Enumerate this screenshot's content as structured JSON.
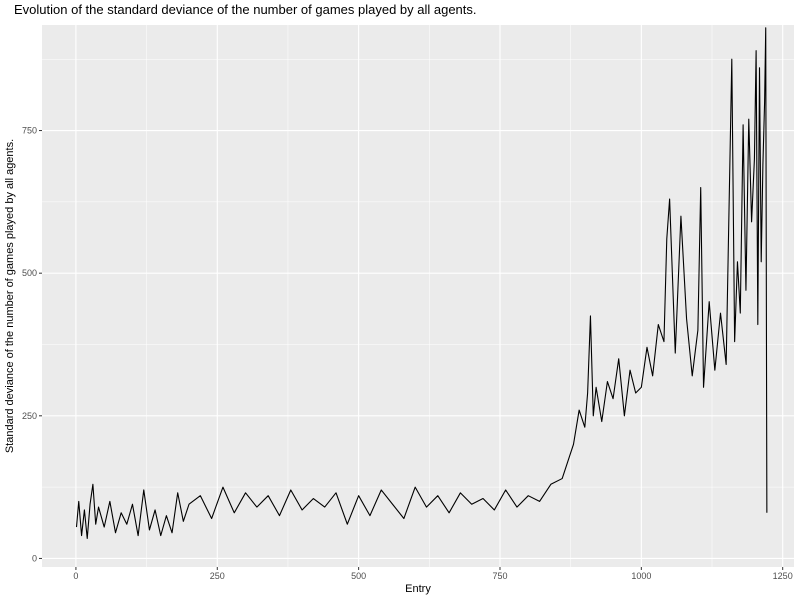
{
  "chart_data": {
    "type": "line",
    "title": "Evolution of the standard deviance of the number of games played by all agents.",
    "xlabel": "Entry",
    "ylabel": "Standard deviance of the number of games played by all agents.",
    "xlim": [
      -60,
      1270
    ],
    "ylim": [
      -15,
      935
    ],
    "x_ticks": [
      0,
      250,
      500,
      750,
      1000,
      1250
    ],
    "x_tick_labels": [
      "0",
      "250",
      "500",
      "750",
      "1000",
      "1250"
    ],
    "y_ticks": [
      0,
      250,
      500,
      750
    ],
    "y_tick_labels": [
      "0",
      "250",
      "500",
      "750"
    ],
    "grid": true,
    "legend": "none",
    "colors": {
      "panel": "#ebebeb",
      "grid": "#ffffff",
      "line": "#000000",
      "tick_text": "#4d4d4d",
      "tick_mark": "#333333"
    },
    "series": [
      {
        "x": [
          1,
          5,
          10,
          15,
          20,
          25,
          30,
          35,
          40,
          50,
          60,
          70,
          80,
          90,
          100,
          110,
          120,
          130,
          140,
          150,
          160,
          170,
          180,
          190,
          200,
          220,
          240,
          260,
          280,
          300,
          320,
          340,
          360,
          380,
          400,
          420,
          440,
          460,
          480,
          500,
          520,
          540,
          560,
          580,
          600,
          620,
          640,
          660,
          680,
          700,
          720,
          740,
          760,
          780,
          800,
          820,
          840,
          860,
          870,
          880,
          890,
          900,
          905,
          910,
          915,
          920,
          930,
          940,
          950,
          960,
          970,
          980,
          990,
          1000,
          1010,
          1020,
          1030,
          1040,
          1045,
          1050,
          1060,
          1070,
          1080,
          1090,
          1100,
          1105,
          1110,
          1120,
          1130,
          1140,
          1150,
          1160,
          1165,
          1170,
          1175,
          1180,
          1185,
          1190,
          1195,
          1200,
          1203,
          1206,
          1209,
          1212,
          1215,
          1218,
          1220,
          1222
        ],
        "values": [
          55,
          100,
          40,
          85,
          35,
          95,
          130,
          60,
          90,
          55,
          100,
          45,
          80,
          60,
          95,
          40,
          120,
          50,
          85,
          40,
          75,
          45,
          115,
          65,
          95,
          110,
          70,
          125,
          80,
          115,
          90,
          110,
          75,
          120,
          85,
          105,
          90,
          115,
          60,
          110,
          75,
          120,
          95,
          70,
          125,
          90,
          110,
          80,
          115,
          95,
          105,
          85,
          120,
          90,
          110,
          100,
          130,
          140,
          170,
          200,
          260,
          230,
          290,
          425,
          250,
          300,
          240,
          310,
          280,
          350,
          250,
          330,
          290,
          300,
          370,
          320,
          410,
          380,
          560,
          630,
          360,
          600,
          420,
          320,
          400,
          650,
          300,
          450,
          330,
          430,
          340,
          875,
          380,
          520,
          430,
          760,
          470,
          770,
          590,
          700,
          890,
          410,
          860,
          520,
          690,
          800,
          930,
          80
        ]
      }
    ]
  }
}
